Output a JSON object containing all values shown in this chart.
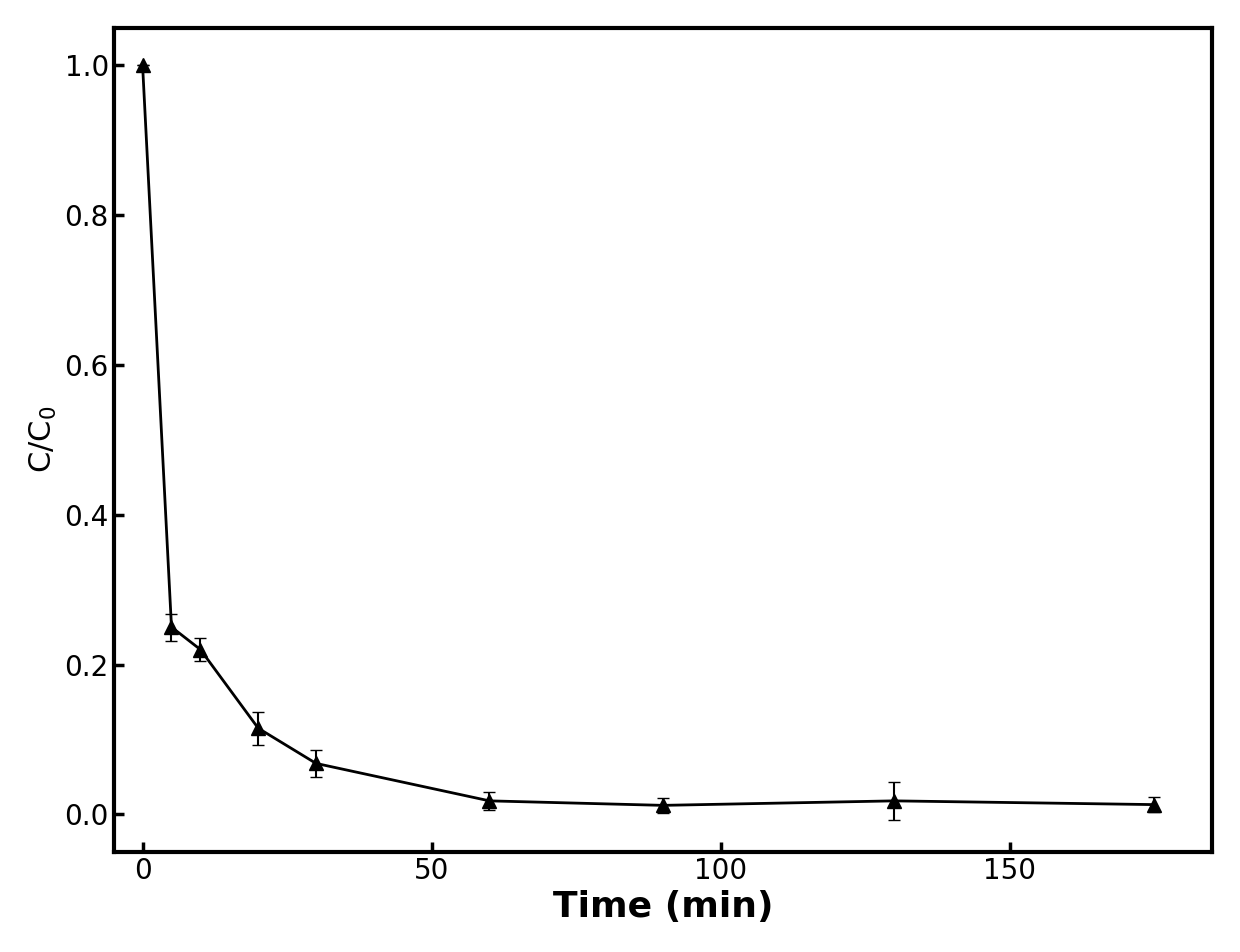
{
  "x": [
    0,
    5,
    10,
    20,
    30,
    60,
    90,
    130,
    175
  ],
  "y": [
    1.0,
    0.25,
    0.22,
    0.115,
    0.068,
    0.018,
    0.012,
    0.018,
    0.013
  ],
  "yerr": [
    0.0,
    0.018,
    0.015,
    0.022,
    0.018,
    0.012,
    0.01,
    0.025,
    0.01
  ],
  "xlabel": "Time (min)",
  "ylabel": "C/C$_0$",
  "xlim": [
    -5,
    185
  ],
  "ylim": [
    -0.05,
    1.05
  ],
  "xticks": [
    0,
    50,
    100,
    150
  ],
  "yticks": [
    0.0,
    0.2,
    0.4,
    0.6,
    0.8,
    1.0
  ],
  "line_color": "#000000",
  "marker": "^",
  "marker_size": 10,
  "marker_color": "#000000",
  "line_width": 2.0,
  "capsize": 4,
  "elinewidth": 1.5,
  "xlabel_fontsize": 26,
  "ylabel_fontsize": 22,
  "tick_fontsize": 20,
  "background_color": "#ffffff",
  "spine_linewidth": 3.0
}
